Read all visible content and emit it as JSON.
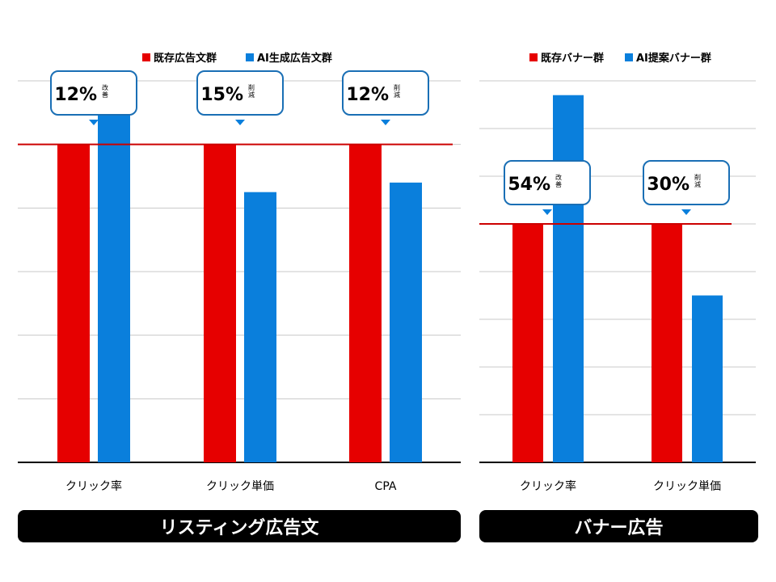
{
  "colors": {
    "existing": "#e60000",
    "ai": "#0a7fdc",
    "baseline": "#cc0000",
    "grid": "#c8c8c8",
    "axis": "#000000",
    "callout_border": "#1a6fb5"
  },
  "chart_data": [
    {
      "type": "bar",
      "panel_label": "リスティング広告文",
      "categories": [
        "クリック率",
        "クリック単価",
        "CPA"
      ],
      "series": [
        {
          "name": "既存広告文群",
          "values": [
            100,
            100,
            100
          ]
        },
        {
          "name": "AI生成広告文群",
          "values": [
            112,
            85,
            88
          ]
        }
      ],
      "callouts": [
        {
          "value": "12%",
          "note": "改善"
        },
        {
          "value": "15%",
          "note": "削減"
        },
        {
          "value": "12%",
          "note": "削減"
        }
      ],
      "baseline": 100,
      "ylim": [
        0,
        120
      ],
      "grid": true,
      "legend": "top-center"
    },
    {
      "type": "bar",
      "panel_label": "バナー広告",
      "categories": [
        "クリック率",
        "クリック単価"
      ],
      "series": [
        {
          "name": "既存バナー群",
          "values": [
            100,
            100
          ]
        },
        {
          "name": "AI提案バナー群",
          "values": [
            154,
            70
          ]
        }
      ],
      "callouts": [
        {
          "value": "54%",
          "note": "改善"
        },
        {
          "value": "30%",
          "note": "削減"
        }
      ],
      "baseline": 100,
      "ylim": [
        0,
        160
      ],
      "grid": true,
      "legend": "top-center"
    }
  ]
}
